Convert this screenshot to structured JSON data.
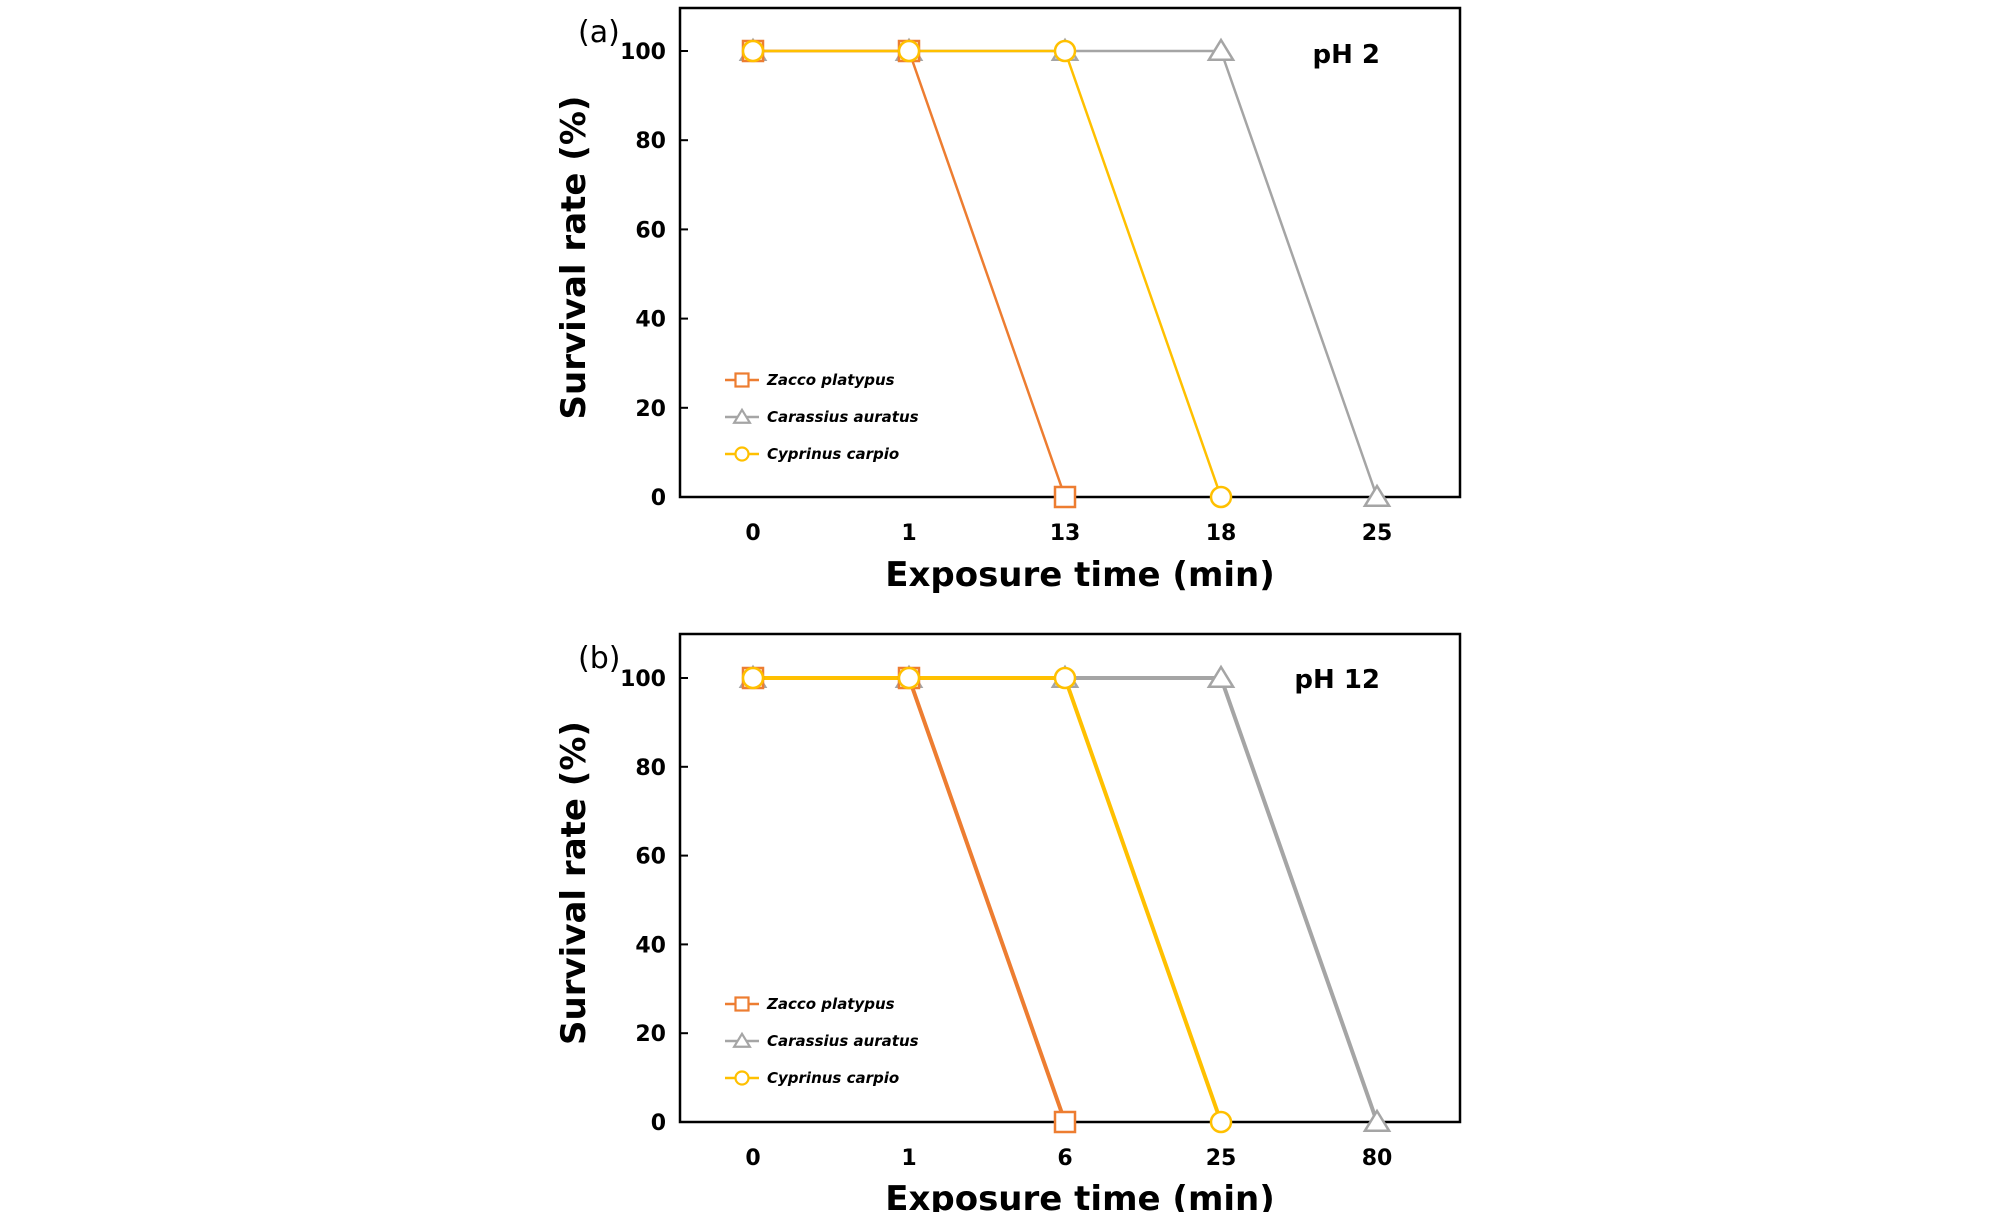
{
  "chart_data": [
    {
      "type": "line",
      "panel_label": "(a)",
      "annotation": "pH 2",
      "xlabel": "Exposure time (min)",
      "ylabel": "Survival rate (%)",
      "categories": [
        "0",
        "1",
        "13",
        "18",
        "25"
      ],
      "ylim": [
        0,
        100
      ],
      "yticks": [
        0,
        20,
        40,
        60,
        80,
        100
      ],
      "grid": false,
      "legend_position": "lower-left",
      "series": [
        {
          "name": "Zacco platypus",
          "marker": "square",
          "color": "#ED7D31",
          "x": [
            "0",
            "1",
            "13"
          ],
          "values": [
            100,
            100,
            0
          ]
        },
        {
          "name": "Carassius auratus",
          "marker": "triangle",
          "color": "#A5A5A5",
          "x": [
            "0",
            "1",
            "13",
            "18",
            "25"
          ],
          "values": [
            100,
            100,
            100,
            100,
            0
          ]
        },
        {
          "name": "Cyprinus carpio",
          "marker": "circle",
          "color": "#FFC000",
          "x": [
            "0",
            "1",
            "13",
            "18"
          ],
          "values": [
            100,
            100,
            100,
            0
          ]
        }
      ]
    },
    {
      "type": "line",
      "panel_label": "(b)",
      "annotation": "pH 12",
      "xlabel": "Exposure time (min)",
      "ylabel": "Survival rate (%)",
      "categories": [
        "0",
        "1",
        "6",
        "25",
        "80"
      ],
      "ylim": [
        0,
        100
      ],
      "yticks": [
        0,
        20,
        40,
        60,
        80,
        100
      ],
      "grid": false,
      "legend_position": "lower-left",
      "series": [
        {
          "name": "Zacco platypus",
          "marker": "square",
          "color": "#ED7D31",
          "x": [
            "0",
            "1",
            "6"
          ],
          "values": [
            100,
            100,
            0
          ]
        },
        {
          "name": "Carassius auratus",
          "marker": "triangle",
          "color": "#A5A5A5",
          "x": [
            "0",
            "1",
            "6",
            "25",
            "80"
          ],
          "values": [
            100,
            100,
            100,
            100,
            0
          ]
        },
        {
          "name": "Cyprinus carpio",
          "marker": "circle",
          "color": "#FFC000",
          "x": [
            "0",
            "1",
            "6",
            "25"
          ],
          "values": [
            100,
            100,
            100,
            0
          ]
        }
      ]
    }
  ]
}
